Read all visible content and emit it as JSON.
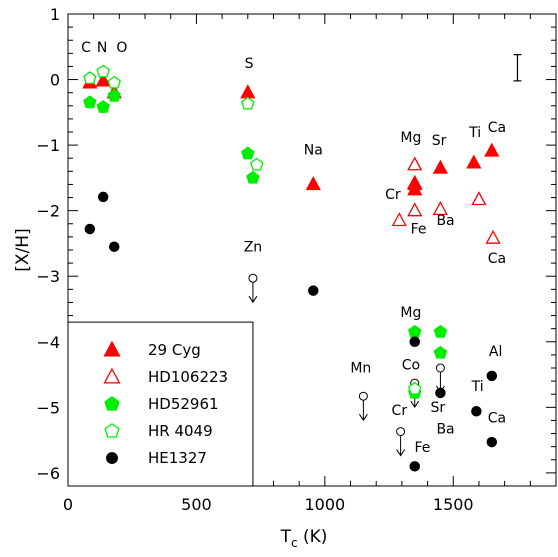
{
  "chart_data": {
    "type": "scatter",
    "xlabel_main": "T",
    "xlabel_sub": "c",
    "xlabel_unit": " (K)",
    "ylabel": "[X/H]",
    "xlim": [
      0,
      1900
    ],
    "ylim": [
      -6.2,
      1.0
    ],
    "x_ticks": [
      0,
      500,
      1000,
      1500
    ],
    "y_ticks": [
      1,
      0,
      -1,
      -2,
      -3,
      -4,
      -5,
      -6
    ],
    "colors": {
      "red": "#ff0000",
      "green": "#00ee00",
      "black": "#000000"
    },
    "error_bar": {
      "x": 1750,
      "y_low": -0.02,
      "y_high": 0.38
    },
    "legend": [
      {
        "name": "29 Cyg",
        "marker": "triangle",
        "filled": true,
        "color": "#ff0000",
        "text_color": "#ff0000"
      },
      {
        "name": "HD106223",
        "marker": "triangle",
        "filled": false,
        "color": "#ff0000",
        "text_color": "#ff0000"
      },
      {
        "name": "HD52961",
        "marker": "pentagon",
        "filled": true,
        "color": "#00ee00",
        "text_color": "#00cc00"
      },
      {
        "name": "HR 4049",
        "marker": "pentagon",
        "filled": false,
        "color": "#00ee00",
        "text_color": "#00cc00"
      },
      {
        "name": "HE1327",
        "marker": "circle",
        "filled": true,
        "color": "#000000",
        "text_color": "#000000"
      }
    ],
    "series": [
      {
        "name": "29 Cyg",
        "marker": "triangle",
        "filled": true,
        "color": "#ff0000",
        "points": [
          [
            85,
            -0.05
          ],
          [
            137,
            -0.02
          ],
          [
            180,
            -0.2
          ],
          [
            700,
            -0.2
          ],
          [
            955,
            -1.6
          ],
          [
            1350,
            -1.58
          ],
          [
            1350,
            -1.68
          ],
          [
            1350,
            -1.6
          ],
          [
            1450,
            -1.35
          ],
          [
            1580,
            -1.27
          ],
          [
            1650,
            -1.09
          ]
        ]
      },
      {
        "name": "HD106223",
        "marker": "triangle",
        "filled": false,
        "color": "#ff0000",
        "points": [
          [
            1290,
            -2.15
          ],
          [
            1350,
            -1.3
          ],
          [
            1350,
            -2.0
          ],
          [
            1450,
            -1.98
          ],
          [
            1600,
            -1.83
          ],
          [
            1655,
            -2.42
          ]
        ]
      },
      {
        "name": "HD52961",
        "marker": "pentagon",
        "filled": true,
        "color": "#00ee00",
        "points": [
          [
            85,
            -0.35
          ],
          [
            137,
            -0.42
          ],
          [
            180,
            -0.25
          ],
          [
            700,
            -1.13
          ],
          [
            720,
            -1.5
          ],
          [
            1350,
            -3.85
          ],
          [
            1350,
            -4.78
          ],
          [
            1450,
            -3.85
          ],
          [
            1450,
            -4.17
          ]
        ]
      },
      {
        "name": "HR 4049",
        "marker": "pentagon",
        "filled": false,
        "color": "#00ee00",
        "points": [
          [
            85,
            0.02
          ],
          [
            137,
            0.12
          ],
          [
            180,
            -0.05
          ],
          [
            700,
            -0.37
          ],
          [
            735,
            -1.3
          ],
          [
            1350,
            -4.72
          ]
        ]
      },
      {
        "name": "HE1327",
        "marker": "circle",
        "filled": true,
        "color": "#000000",
        "points": [
          [
            85,
            -2.28
          ],
          [
            137,
            -1.79
          ],
          [
            180,
            -2.55
          ],
          [
            955,
            -3.22
          ],
          [
            1350,
            -4.0
          ],
          [
            1350,
            -5.9
          ],
          [
            1450,
            -4.78
          ],
          [
            1590,
            -5.06
          ],
          [
            1650,
            -4.52
          ],
          [
            1650,
            -5.53
          ]
        ]
      }
    ],
    "upper_limits": [
      {
        "x": 720,
        "y": -3.03
      },
      {
        "x": 1150,
        "y": -4.83
      },
      {
        "x": 1295,
        "y": -5.37
      },
      {
        "x": 1350,
        "y": -4.63
      },
      {
        "x": 1450,
        "y": -4.4
      }
    ],
    "element_labels": [
      {
        "text": "C",
        "x": 70,
        "y": 0.42
      },
      {
        "text": "N",
        "x": 133,
        "y": 0.42
      },
      {
        "text": "O",
        "x": 210,
        "y": 0.42
      },
      {
        "text": "S",
        "x": 705,
        "y": 0.18
      },
      {
        "text": "Na",
        "x": 955,
        "y": -1.14
      },
      {
        "text": "Mg",
        "x": 1335,
        "y": -0.95
      },
      {
        "text": "Sr",
        "x": 1445,
        "y": -1.0
      },
      {
        "text": "Ti",
        "x": 1585,
        "y": -0.88
      },
      {
        "text": "Ca",
        "x": 1670,
        "y": -0.8
      },
      {
        "text": "Cr",
        "x": 1265,
        "y": -1.82
      },
      {
        "text": "Fe",
        "x": 1365,
        "y": -2.35
      },
      {
        "text": "Ba",
        "x": 1470,
        "y": -2.22
      },
      {
        "text": "Ca",
        "x": 1670,
        "y": -2.8
      },
      {
        "text": "Zn",
        "x": 720,
        "y": -2.62
      },
      {
        "text": "Mg",
        "x": 1335,
        "y": -3.62
      },
      {
        "text": "Co",
        "x": 1335,
        "y": -4.42
      },
      {
        "text": "Mn",
        "x": 1140,
        "y": -4.47
      },
      {
        "text": "Sr",
        "x": 1440,
        "y": -5.07
      },
      {
        "text": "Ti",
        "x": 1595,
        "y": -4.75
      },
      {
        "text": "Al",
        "x": 1665,
        "y": -4.22
      },
      {
        "text": "Cr",
        "x": 1290,
        "y": -5.12
      },
      {
        "text": "Ba",
        "x": 1470,
        "y": -5.4
      },
      {
        "text": "Ca",
        "x": 1670,
        "y": -5.23
      },
      {
        "text": "Fe",
        "x": 1380,
        "y": -5.68
      }
    ]
  }
}
